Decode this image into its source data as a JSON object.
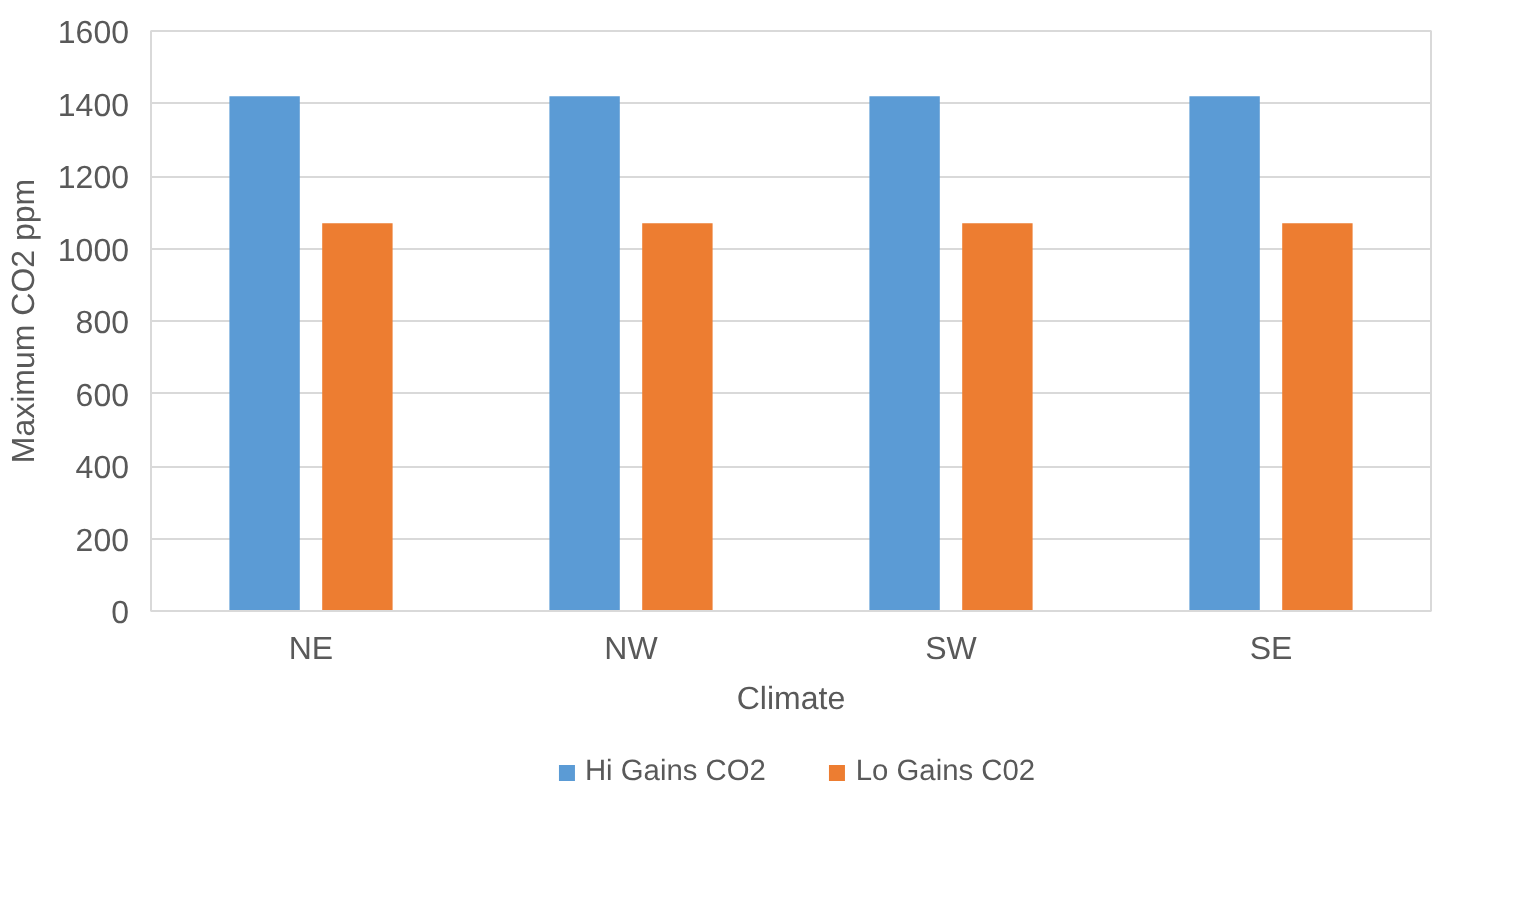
{
  "chart_data": {
    "type": "bar",
    "xlabel": "Climate",
    "ylabel": "Maximum CO2 ppm",
    "categories": [
      "NE",
      "NW",
      "SW",
      "SE"
    ],
    "series": [
      {
        "name": "Hi Gains CO2",
        "color": "#5b9bd5",
        "values": [
          1420,
          1420,
          1420,
          1420
        ]
      },
      {
        "name": "Lo Gains C02",
        "color": "#ed7d31",
        "values": [
          1070,
          1070,
          1070,
          1070
        ]
      }
    ],
    "ylim": [
      0,
      1600
    ],
    "yticks": [
      0,
      200,
      400,
      600,
      800,
      1000,
      1200,
      1400,
      1600
    ],
    "grid": "y",
    "legend": "bottom"
  }
}
